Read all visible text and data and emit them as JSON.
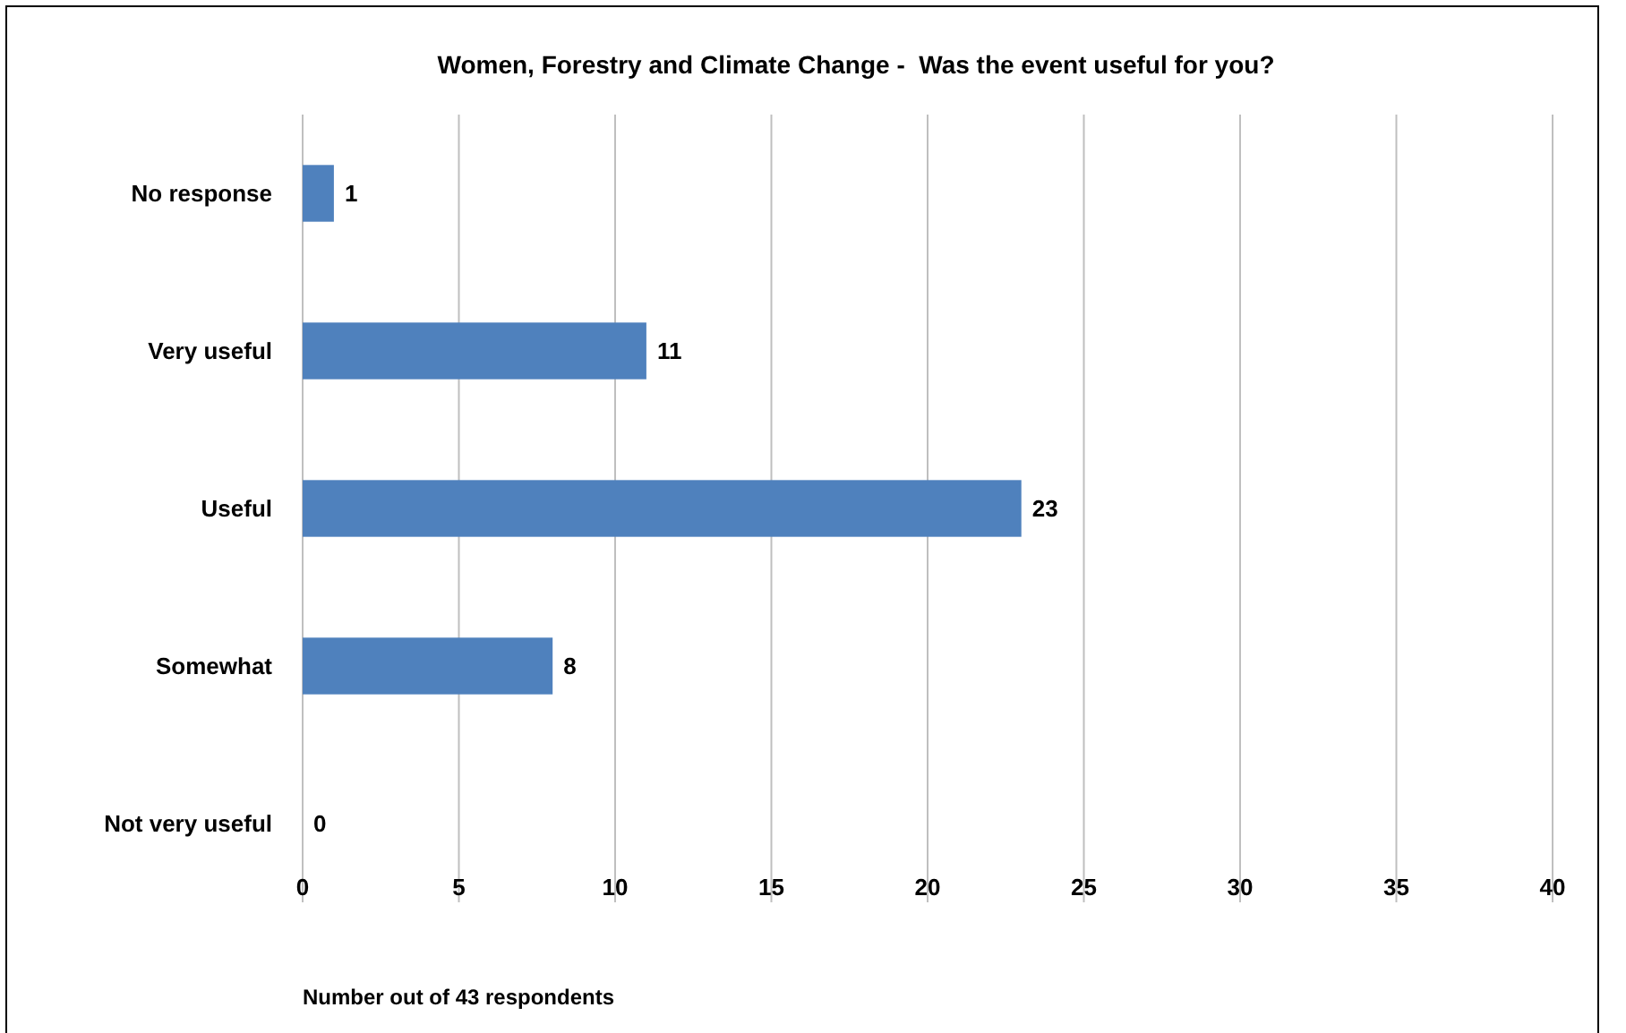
{
  "chart_data": {
    "type": "bar",
    "orientation": "horizontal",
    "title": "Women, Forestry and Climate Change -  Was the event useful for you?",
    "xlabel": "Number out of 43 respondents",
    "categories": [
      "No response",
      "Very useful",
      "Useful",
      "Somewhat",
      "Not very useful"
    ],
    "values": [
      1,
      11,
      23,
      8,
      0
    ],
    "color": "#4f81bd",
    "data_labels": true,
    "grid": "x",
    "xlim": [
      0,
      40
    ],
    "xticks": [
      0,
      5,
      10,
      15,
      20,
      25,
      30,
      35,
      40
    ]
  }
}
